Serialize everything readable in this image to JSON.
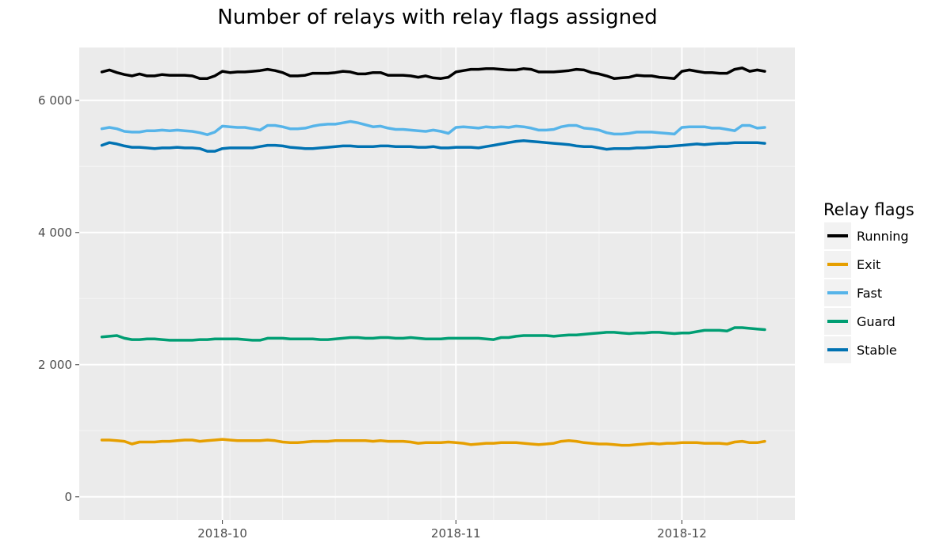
{
  "chart_data": {
    "type": "line",
    "title": "Number of relays with relay flags assigned",
    "xlabel": "",
    "ylabel": "",
    "x_range": [
      "2018-09-12",
      "2018-12-16"
    ],
    "x_start": "2018-09-15",
    "ylim": [
      -350,
      6800
    ],
    "y_ticks": [
      0,
      2000,
      4000,
      6000
    ],
    "y_tick_labels": [
      "0",
      "2 000",
      "4 000",
      "6 000"
    ],
    "x_ticks": [
      "2018-10-01",
      "2018-11-01",
      "2018-12-01"
    ],
    "x_tick_labels": [
      "2018-10",
      "2018-11",
      "2018-12"
    ],
    "grid": true,
    "legend": {
      "title": "Relay flags",
      "position": "right"
    },
    "series": [
      {
        "name": "Running",
        "color": "#000000",
        "values": [
          6430,
          6460,
          6420,
          6390,
          6370,
          6400,
          6370,
          6370,
          6390,
          6380,
          6380,
          6380,
          6370,
          6330,
          6330,
          6370,
          6440,
          6420,
          6430,
          6430,
          6440,
          6450,
          6470,
          6450,
          6420,
          6370,
          6370,
          6380,
          6410,
          6410,
          6410,
          6420,
          6440,
          6430,
          6400,
          6400,
          6420,
          6420,
          6380,
          6380,
          6380,
          6370,
          6350,
          6370,
          6340,
          6330,
          6350,
          6430,
          6450,
          6470,
          6470,
          6480,
          6480,
          6470,
          6460,
          6460,
          6480,
          6470,
          6430,
          6430,
          6430,
          6440,
          6450,
          6470,
          6460,
          6420,
          6400,
          6370,
          6330,
          6340,
          6350,
          6380,
          6370,
          6370,
          6350,
          6340,
          6330,
          6440,
          6460,
          6440,
          6420,
          6420,
          6410,
          6410,
          6470,
          6490,
          6440,
          6460,
          6440
        ]
      },
      {
        "name": "Exit",
        "color": "#E69F00",
        "values": [
          860,
          860,
          850,
          840,
          800,
          830,
          830,
          830,
          840,
          840,
          850,
          860,
          860,
          840,
          850,
          860,
          870,
          860,
          850,
          850,
          850,
          850,
          860,
          850,
          830,
          820,
          820,
          830,
          840,
          840,
          840,
          850,
          850,
          850,
          850,
          850,
          840,
          850,
          840,
          840,
          840,
          830,
          810,
          820,
          820,
          820,
          830,
          820,
          810,
          790,
          800,
          810,
          810,
          820,
          820,
          820,
          810,
          800,
          790,
          800,
          810,
          840,
          850,
          840,
          820,
          810,
          800,
          800,
          790,
          780,
          780,
          790,
          800,
          810,
          800,
          810,
          810,
          820,
          820,
          820,
          810,
          810,
          810,
          800,
          830,
          840,
          820,
          820,
          840
        ]
      },
      {
        "name": "Fast",
        "color": "#56B4E9",
        "values": [
          5570,
          5590,
          5570,
          5530,
          5520,
          5520,
          5540,
          5540,
          5550,
          5540,
          5550,
          5540,
          5530,
          5510,
          5480,
          5520,
          5610,
          5600,
          5590,
          5590,
          5570,
          5550,
          5620,
          5620,
          5600,
          5570,
          5570,
          5580,
          5610,
          5630,
          5640,
          5640,
          5660,
          5680,
          5660,
          5630,
          5600,
          5610,
          5580,
          5560,
          5560,
          5550,
          5540,
          5530,
          5550,
          5530,
          5500,
          5590,
          5600,
          5590,
          5580,
          5600,
          5590,
          5600,
          5590,
          5610,
          5600,
          5580,
          5550,
          5550,
          5560,
          5600,
          5620,
          5620,
          5580,
          5570,
          5550,
          5510,
          5490,
          5490,
          5500,
          5520,
          5520,
          5520,
          5510,
          5500,
          5490,
          5590,
          5600,
          5600,
          5600,
          5580,
          5580,
          5560,
          5540,
          5620,
          5620,
          5580,
          5590
        ]
      },
      {
        "name": "Guard",
        "color": "#009E73",
        "values": [
          2420,
          2430,
          2440,
          2400,
          2380,
          2380,
          2390,
          2390,
          2380,
          2370,
          2370,
          2370,
          2370,
          2380,
          2380,
          2390,
          2390,
          2390,
          2390,
          2380,
          2370,
          2370,
          2400,
          2400,
          2400,
          2390,
          2390,
          2390,
          2390,
          2380,
          2380,
          2390,
          2400,
          2410,
          2410,
          2400,
          2400,
          2410,
          2410,
          2400,
          2400,
          2410,
          2400,
          2390,
          2390,
          2390,
          2400,
          2400,
          2400,
          2400,
          2400,
          2390,
          2380,
          2410,
          2410,
          2430,
          2440,
          2440,
          2440,
          2440,
          2430,
          2440,
          2450,
          2450,
          2460,
          2470,
          2480,
          2490,
          2490,
          2480,
          2470,
          2480,
          2480,
          2490,
          2490,
          2480,
          2470,
          2480,
          2480,
          2500,
          2520,
          2520,
          2520,
          2510,
          2560,
          2560,
          2550,
          2540,
          2530
        ]
      },
      {
        "name": "Stable",
        "color": "#0072B2",
        "values": [
          5320,
          5360,
          5340,
          5310,
          5290,
          5290,
          5280,
          5270,
          5280,
          5280,
          5290,
          5280,
          5280,
          5270,
          5230,
          5230,
          5270,
          5280,
          5280,
          5280,
          5280,
          5300,
          5320,
          5320,
          5310,
          5290,
          5280,
          5270,
          5270,
          5280,
          5290,
          5300,
          5310,
          5310,
          5300,
          5300,
          5300,
          5310,
          5310,
          5300,
          5300,
          5300,
          5290,
          5290,
          5300,
          5280,
          5280,
          5290,
          5290,
          5290,
          5280,
          5300,
          5320,
          5340,
          5360,
          5380,
          5390,
          5380,
          5370,
          5360,
          5350,
          5340,
          5330,
          5310,
          5300,
          5300,
          5280,
          5260,
          5270,
          5270,
          5270,
          5280,
          5280,
          5290,
          5300,
          5300,
          5310,
          5320,
          5330,
          5340,
          5330,
          5340,
          5350,
          5350,
          5360,
          5360,
          5360,
          5360,
          5350
        ]
      }
    ]
  }
}
